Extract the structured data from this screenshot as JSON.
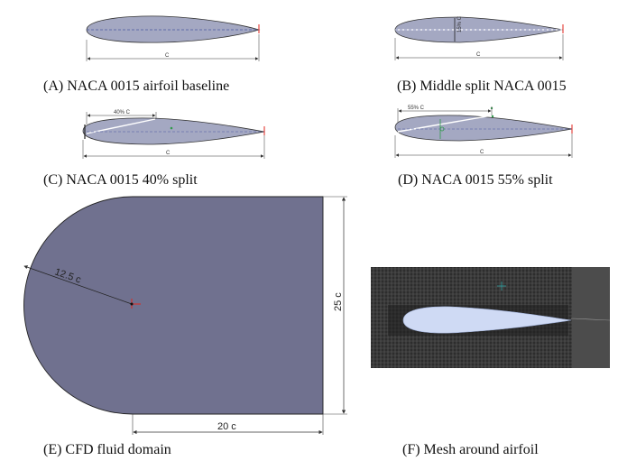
{
  "panels": {
    "a": {
      "caption": "(A)  NACA 0015 airfoil baseline",
      "chord_label": "C"
    },
    "b": {
      "caption": "(B)  Middle split NACA 0015",
      "chord_label": "C",
      "thickness_label": "15% C"
    },
    "c": {
      "caption": "(C)  NACA 0015 40% split",
      "chord_label": "C",
      "split_label": "40% C"
    },
    "d": {
      "caption": "(D)  NACA 0015 55% split",
      "chord_label": "C",
      "split_label": "55% C"
    },
    "e": {
      "caption": "(E)  CFD fluid domain",
      "radius_label": "12.5 c",
      "height_label": "25 c",
      "length_label": "20 c"
    },
    "f": {
      "caption": "(F)  Mesh around airfoil"
    }
  },
  "colors": {
    "airfoil_fill": "#a4a8c2",
    "domain_fill": "#70718f",
    "mesh_background": "#2b2b2b",
    "accent_red": "#e0261c",
    "accent_green": "#2f9a4a"
  }
}
